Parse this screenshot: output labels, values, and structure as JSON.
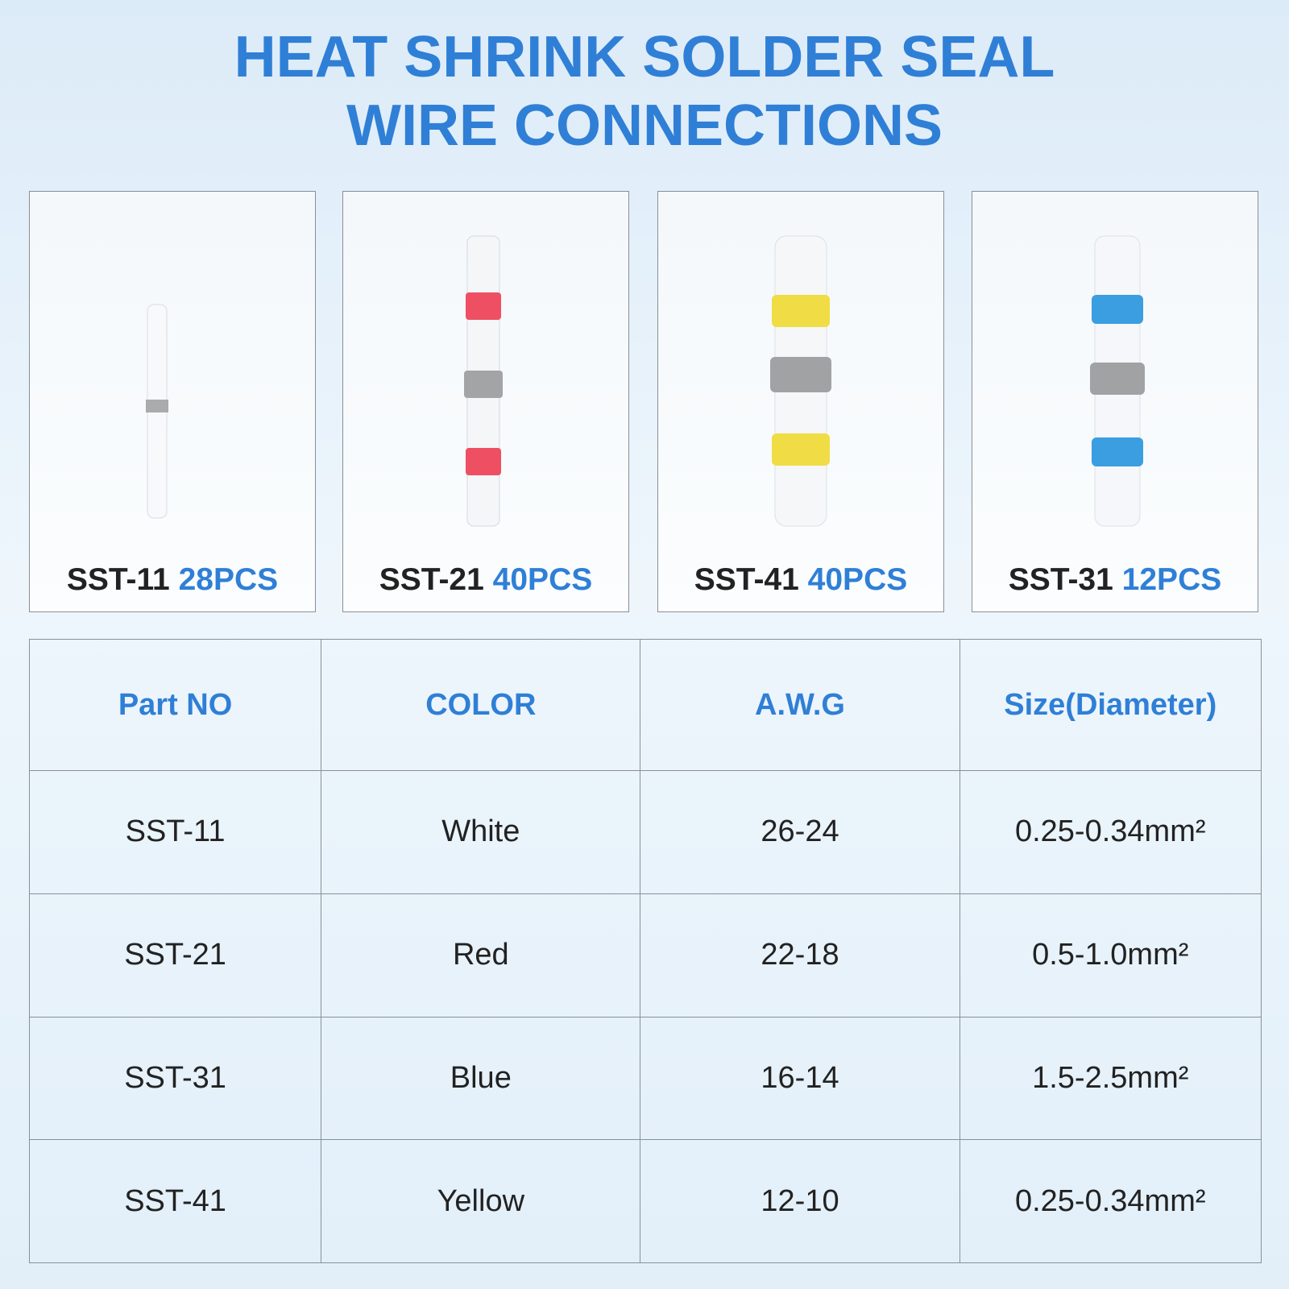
{
  "header": {
    "title_lines": [
      "HEAT SHRINK SOLDER SEAL",
      "WIRE CONNECTIONS"
    ]
  },
  "products": [
    {
      "part": "SST-11",
      "quantity": "28PCS"
    },
    {
      "part": "SST-21",
      "quantity": "40PCS"
    },
    {
      "part": "SST-41",
      "quantity": "40PCS"
    },
    {
      "part": "SST-31",
      "quantity": "12PCS"
    }
  ],
  "table": {
    "columns": [
      "Part NO",
      "COLOR",
      "A.W.G",
      "Size(Diameter)"
    ],
    "rows": [
      [
        "SST-11",
        "White",
        "26-24",
        "0.25-0.34mm²"
      ],
      [
        "SST-21",
        "Red",
        "22-18",
        "0.5-1.0mm²"
      ],
      [
        "SST-31",
        "Blue",
        "16-14",
        "1.5-2.5mm²"
      ],
      [
        "SST-41",
        "Yellow",
        "12-10",
        "0.25-0.34mm²"
      ]
    ]
  }
}
